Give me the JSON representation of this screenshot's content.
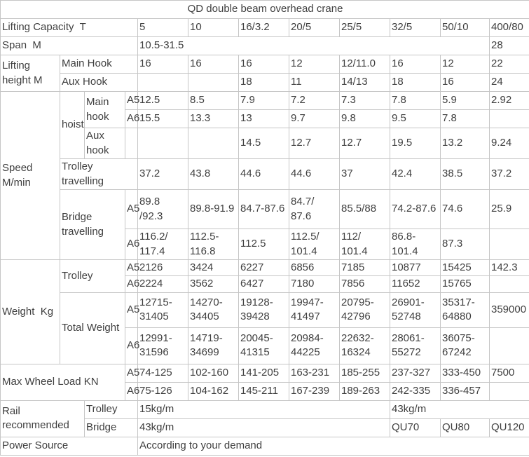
{
  "title": "QD double beam overhead crane",
  "table": {
    "rows": [
      {
        "cells": [
          {
            "t": "QD double beam overhead crane",
            "cs": 12,
            "align": "center",
            "name": "table-title"
          }
        ]
      },
      {
        "cells": [
          {
            "t": "Lifting Capacity  T",
            "cs": 4,
            "name": "label-lifting-capacity"
          },
          {
            "t": "5",
            "name": "capacity-col-header"
          },
          {
            "t": "10",
            "name": "capacity-col-header"
          },
          {
            "t": "16/3.2",
            "name": "capacity-col-header"
          },
          {
            "t": "20/5",
            "name": "capacity-col-header"
          },
          {
            "t": "25/5",
            "name": "capacity-col-header"
          },
          {
            "t": "32/5",
            "name": "capacity-col-header"
          },
          {
            "t": "50/10",
            "name": "capacity-col-header"
          },
          {
            "t": "400/80",
            "name": "capacity-col-header"
          }
        ]
      },
      {
        "cells": [
          {
            "t": "Span  M",
            "cs": 4,
            "name": "label-span"
          },
          {
            "t": "10.5-31.5",
            "cs": 7,
            "name": "span-value"
          },
          {
            "t": "28",
            "name": "span-value"
          }
        ]
      },
      {
        "cells": [
          {
            "t": "Lifting\nheight M",
            "rs": 2,
            "name": "label-lifting-height"
          },
          {
            "t": "Main Hook",
            "cs": 3,
            "name": "label-main-hook"
          },
          {
            "t": "16"
          },
          {
            "t": "16"
          },
          {
            "t": "16"
          },
          {
            "t": "12"
          },
          {
            "t": "12/11.0"
          },
          {
            "t": "16"
          },
          {
            "t": "12"
          },
          {
            "t": "22"
          }
        ]
      },
      {
        "cells": [
          {
            "t": "Aux Hook",
            "cs": 3,
            "name": "label-aux-hook"
          },
          {
            "t": ""
          },
          {
            "t": ""
          },
          {
            "t": "18"
          },
          {
            "t": "11"
          },
          {
            "t": "14/13"
          },
          {
            "t": "18"
          },
          {
            "t": "16"
          },
          {
            "t": "24"
          }
        ]
      },
      {
        "cells": [
          {
            "t": "Speed\nM/min",
            "rs": 6,
            "name": "label-speed"
          },
          {
            "t": "hoist",
            "rs": 3,
            "name": "label-hoist"
          },
          {
            "t": "Main\nhook",
            "rs": 2,
            "name": "label-hoist-main-hook"
          },
          {
            "t": "A5",
            "name": "label-a5"
          },
          {
            "t": "12.5"
          },
          {
            "t": "8.5"
          },
          {
            "t": "7.9"
          },
          {
            "t": "7.2"
          },
          {
            "t": "7.3"
          },
          {
            "t": "7.8"
          },
          {
            "t": "5.9"
          },
          {
            "t": "2.92"
          }
        ]
      },
      {
        "cells": [
          {
            "t": "A6",
            "name": "label-a6"
          },
          {
            "t": "15.5"
          },
          {
            "t": "13.3"
          },
          {
            "t": "13"
          },
          {
            "t": "9.7"
          },
          {
            "t": "9.8"
          },
          {
            "t": "9.5"
          },
          {
            "t": "7.8"
          },
          {
            "t": ""
          }
        ]
      },
      {
        "cells": [
          {
            "t": "Aux\nhook",
            "name": "label-hoist-aux-hook"
          },
          {
            "t": ""
          },
          {
            "t": ""
          },
          {
            "t": ""
          },
          {
            "t": "14.5"
          },
          {
            "t": "12.7"
          },
          {
            "t": "12.7"
          },
          {
            "t": "19.5"
          },
          {
            "t": "13.2"
          },
          {
            "t": "9.24"
          }
        ]
      },
      {
        "cells": [
          {
            "t": "Trolley\ntravelling",
            "cs": 3,
            "name": "label-trolley-travelling"
          },
          {
            "t": "37.2"
          },
          {
            "t": "43.8"
          },
          {
            "t": "44.6"
          },
          {
            "t": "44.6"
          },
          {
            "t": "37"
          },
          {
            "t": "42.4"
          },
          {
            "t": "38.5"
          },
          {
            "t": "37.2"
          }
        ]
      },
      {
        "cells": [
          {
            "t": "Bridge\ntravelling",
            "cs": 2,
            "rs": 2,
            "name": "label-bridge-travelling"
          },
          {
            "t": "A5",
            "name": "label-a5"
          },
          {
            "t": "89.8\n/92.3"
          },
          {
            "t": "89.8-91.9"
          },
          {
            "t": "84.7-87.6"
          },
          {
            "t": "84.7/\n87.6"
          },
          {
            "t": "85.5/88"
          },
          {
            "t": "74.2-87.6"
          },
          {
            "t": "74.6"
          },
          {
            "t": "25.9"
          }
        ]
      },
      {
        "cells": [
          {
            "t": "A6",
            "name": "label-a6"
          },
          {
            "t": "116.2/\n117.4"
          },
          {
            "t": "112.5-\n116.8"
          },
          {
            "t": "112.5"
          },
          {
            "t": "112.5/\n101.4"
          },
          {
            "t": "112/\n101.4"
          },
          {
            "t": "86.8-\n101.4"
          },
          {
            "t": "87.3"
          },
          {
            "t": ""
          }
        ]
      },
      {
        "cells": [
          {
            "t": "Weight  Kg",
            "rs": 4,
            "name": "label-weight"
          },
          {
            "t": "Trolley",
            "cs": 2,
            "rs": 2,
            "name": "label-trolley-weight"
          },
          {
            "t": "A5",
            "name": "label-a5"
          },
          {
            "t": "2126"
          },
          {
            "t": "3424"
          },
          {
            "t": "6227"
          },
          {
            "t": "6856"
          },
          {
            "t": "7185"
          },
          {
            "t": "10877"
          },
          {
            "t": "15425"
          },
          {
            "t": "142.3"
          }
        ]
      },
      {
        "cells": [
          {
            "t": "A6",
            "name": "label-a6"
          },
          {
            "t": "2224"
          },
          {
            "t": "3562"
          },
          {
            "t": "6427"
          },
          {
            "t": "7180"
          },
          {
            "t": "7856"
          },
          {
            "t": "11652"
          },
          {
            "t": "15765"
          },
          {
            "t": ""
          }
        ]
      },
      {
        "cells": [
          {
            "t": "Total Weight",
            "cs": 2,
            "rs": 2,
            "name": "label-total-weight"
          },
          {
            "t": "A5",
            "name": "label-a5"
          },
          {
            "t": "12715-\n31405"
          },
          {
            "t": "14270-\n34405"
          },
          {
            "t": "19128-\n39428"
          },
          {
            "t": "19947-\n41497"
          },
          {
            "t": "20795-\n42796"
          },
          {
            "t": "26901-\n52748"
          },
          {
            "t": "35317-\n64880"
          },
          {
            "t": "359000"
          }
        ]
      },
      {
        "cells": [
          {
            "t": "A6",
            "name": "label-a6"
          },
          {
            "t": "12991-\n31596"
          },
          {
            "t": "14719-\n34699"
          },
          {
            "t": "20045-\n41315"
          },
          {
            "t": "20984-\n44225"
          },
          {
            "t": "22632-\n16324"
          },
          {
            "t": "28061-\n55272"
          },
          {
            "t": "36075-\n67242"
          },
          {
            "t": ""
          }
        ]
      },
      {
        "cells": [
          {
            "t": "Max Wheel Load KN",
            "cs": 3,
            "rs": 2,
            "name": "label-max-wheel-load"
          },
          {
            "t": "A5",
            "name": "label-a5"
          },
          {
            "t": "74-125"
          },
          {
            "t": "102-160"
          },
          {
            "t": "141-205"
          },
          {
            "t": "163-231"
          },
          {
            "t": "185-255"
          },
          {
            "t": "237-327"
          },
          {
            "t": "333-450"
          },
          {
            "t": "7500"
          }
        ]
      },
      {
        "cells": [
          {
            "t": "A6",
            "name": "label-a6"
          },
          {
            "t": "75-126"
          },
          {
            "t": "104-162"
          },
          {
            "t": "145-211"
          },
          {
            "t": "167-239"
          },
          {
            "t": "189-263"
          },
          {
            "t": "242-335"
          },
          {
            "t": "336-457"
          },
          {
            "t": ""
          }
        ]
      },
      {
        "cells": [
          {
            "t": "Rail\nrecommended",
            "cs": 2,
            "rs": 2,
            "name": "label-rail-recommended"
          },
          {
            "t": "Trolley",
            "cs": 2,
            "name": "label-rail-trolley"
          },
          {
            "t": "15kg/m",
            "cs": 5,
            "name": "rail-trolley-value"
          },
          {
            "t": "43kg/m",
            "cs": 3,
            "name": "rail-trolley-value"
          }
        ]
      },
      {
        "cells": [
          {
            "t": "Bridge",
            "cs": 2,
            "name": "label-rail-bridge"
          },
          {
            "t": "43kg/m",
            "cs": 5,
            "name": "rail-bridge-value"
          },
          {
            "t": "QU70",
            "name": "rail-bridge-value"
          },
          {
            "t": "QU80",
            "name": "rail-bridge-value"
          },
          {
            "t": "QU120",
            "name": "rail-bridge-value"
          }
        ]
      },
      {
        "cells": [
          {
            "t": "Power Source",
            "cs": 4,
            "name": "label-power-source"
          },
          {
            "t": "According to your demand",
            "cs": 8,
            "name": "power-source-value"
          }
        ]
      }
    ]
  }
}
